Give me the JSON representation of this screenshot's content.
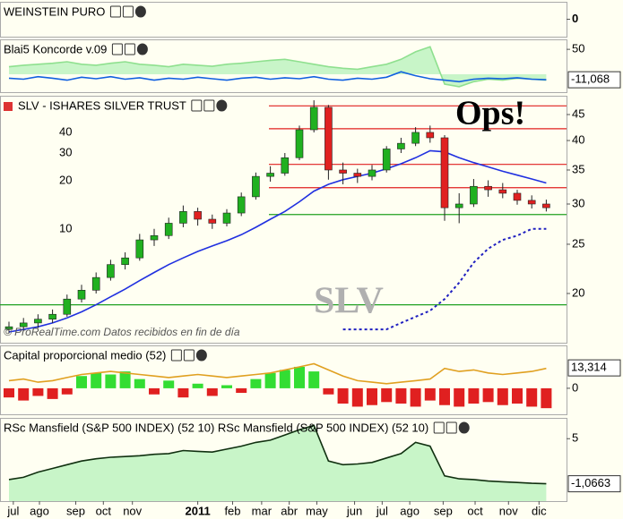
{
  "chart_data": [
    {
      "type": "line",
      "title": "WEINSTEIN PURO",
      "ylim": [
        -1,
        1
      ],
      "yticks": [
        0
      ],
      "series": []
    },
    {
      "type": "line",
      "title": "Blai5 Koncorde v.09",
      "ylim": [
        -36,
        70
      ],
      "yticks": [
        50
      ],
      "last": {
        "value": -11.068,
        "label": "-11,068"
      },
      "series": [
        {
          "color": "#8fe08f",
          "fill": "#c8f5c8",
          "values": [
            15,
            18,
            20,
            22,
            25,
            20,
            18,
            22,
            25,
            20,
            18,
            15,
            20,
            18,
            16,
            20,
            22,
            25,
            28,
            30,
            25,
            20,
            15,
            12,
            10,
            15,
            20,
            30,
            45,
            55,
            -20,
            -25,
            -15,
            -10,
            -12,
            -8,
            -10,
            -12
          ]
        },
        {
          "color": "#1060e0",
          "values": [
            -8,
            -10,
            -5,
            -8,
            -12,
            -6,
            -9,
            -5,
            -10,
            -7,
            -12,
            -8,
            -10,
            -6,
            -9,
            -12,
            -8,
            -6,
            -10,
            -7,
            -9,
            -5,
            -10,
            -12,
            -8,
            -10,
            -6,
            5,
            -3,
            -9,
            -12,
            -15,
            -10,
            -8,
            -9,
            -7,
            -10,
            -11.068
          ]
        }
      ]
    },
    {
      "type": "candlestick",
      "title": "SLV - ISHARES SILVER TRUST",
      "log_scale": true,
      "ylim": [
        16,
        49
      ],
      "yticks": [
        20,
        25,
        30,
        35,
        40,
        45
      ],
      "annotation": "Ops!",
      "watermark": "SLV",
      "source": "© ProRealTime.com Datos recibidos en fin de día",
      "inset_labels": [
        "40",
        "30",
        "20",
        "10"
      ],
      "up_color": "#20b020",
      "down_color": "#e02020",
      "open": [
        17.0,
        17.2,
        17.5,
        17.8,
        18.2,
        19.5,
        20.3,
        21.5,
        22.8,
        23.5,
        25.5,
        26.0,
        27.5,
        29.0,
        28.0,
        27.5,
        28.8,
        31.0,
        34.0,
        34.5,
        37.0,
        42.0,
        46.5,
        35.0,
        34.5,
        34.0,
        35.0,
        38.5,
        39.5,
        41.5,
        40.5,
        29.5,
        30.0,
        32.5,
        32.0,
        31.5,
        30.5,
        30.0
      ],
      "high": [
        17.6,
        17.9,
        18.2,
        18.6,
        19.9,
        20.8,
        22.0,
        23.3,
        24.1,
        26.2,
        26.8,
        28.2,
        29.8,
        29.5,
        28.6,
        29.3,
        31.6,
        34.6,
        35.6,
        37.8,
        42.8,
        48.0,
        47.0,
        36.2,
        35.2,
        35.8,
        39.0,
        40.5,
        42.5,
        42.8,
        41.0,
        31.5,
        33.6,
        33.4,
        33.0,
        32.0,
        31.2,
        30.6
      ],
      "low": [
        16.7,
        16.9,
        17.1,
        17.5,
        18.0,
        19.2,
        20.0,
        21.2,
        22.3,
        23.2,
        24.8,
        25.6,
        27.0,
        27.2,
        26.8,
        27.1,
        28.4,
        30.6,
        33.2,
        34.1,
        36.6,
        41.5,
        33.5,
        32.8,
        33.0,
        33.4,
        34.6,
        37.8,
        39.0,
        39.6,
        27.8,
        27.5,
        29.6,
        31.0,
        30.8,
        29.9,
        29.4,
        29.0
      ],
      "close": [
        17.2,
        17.5,
        17.8,
        18.2,
        19.5,
        20.3,
        21.5,
        22.8,
        23.5,
        25.5,
        26.0,
        27.5,
        29.0,
        28.0,
        27.5,
        28.8,
        31.0,
        34.0,
        34.5,
        37.0,
        42.0,
        46.5,
        35.0,
        34.5,
        34.0,
        35.0,
        38.5,
        39.5,
        41.5,
        40.5,
        29.5,
        30.0,
        32.5,
        32.0,
        31.5,
        30.5,
        30.0,
        29.5
      ],
      "series": [
        {
          "color": "#2030e0",
          "values": [
            16.8,
            17.0,
            17.2,
            17.5,
            17.9,
            18.4,
            19.0,
            19.7,
            20.4,
            21.2,
            22.0,
            22.8,
            23.5,
            24.2,
            24.8,
            25.4,
            26.1,
            27.0,
            28.0,
            29.0,
            30.3,
            31.8,
            32.8,
            33.5,
            34.0,
            34.5,
            35.2,
            36.0,
            37.0,
            38.2,
            38.0,
            37.0,
            36.2,
            35.5,
            34.8,
            34.2,
            33.6,
            33.0
          ]
        },
        {
          "color": "#2020c0",
          "dashed": true,
          "values": [
            null,
            null,
            null,
            null,
            null,
            null,
            null,
            null,
            null,
            null,
            null,
            null,
            null,
            null,
            null,
            null,
            null,
            null,
            null,
            null,
            null,
            null,
            null,
            17.0,
            17.0,
            17.0,
            17.0,
            17.5,
            18.0,
            18.5,
            19.5,
            21.0,
            23.0,
            24.5,
            25.5,
            26.0,
            26.8,
            26.8
          ]
        }
      ],
      "levels": [
        {
          "value": 46.8,
          "color": "#e02020"
        },
        {
          "value": 42.2,
          "color": "#e02020"
        },
        {
          "value": 35.9,
          "color": "#e02020"
        },
        {
          "value": 32.3,
          "color": "#e02020"
        },
        {
          "value": 28.6,
          "color": "#20a020"
        },
        {
          "value": 19.0,
          "color": "#20a020"
        }
      ]
    },
    {
      "type": "bar",
      "title": "Capital proporcional medio (52)",
      "ylim": [
        -17,
        28
      ],
      "yticks": [
        0
      ],
      "last": {
        "value": 13.314,
        "label": "13,314"
      },
      "pos_color": "#33dd33",
      "neg_color": "#e02020",
      "values": [
        -6,
        -8,
        -5,
        -7,
        -4,
        8,
        10,
        9,
        11,
        6,
        -4,
        5,
        -6,
        3,
        -5,
        2,
        -3,
        6,
        10,
        12,
        14,
        11,
        -4,
        -10,
        -12,
        -11,
        -9,
        -10,
        -12,
        -8,
        -11,
        -12,
        -10,
        -9,
        -11,
        -10,
        -12,
        -13
      ],
      "series": [
        {
          "color": "#e0a020",
          "values": [
            5,
            6,
            4,
            5,
            7,
            9,
            10,
            11,
            10,
            9,
            8,
            7,
            8,
            9,
            8,
            7,
            8,
            9,
            10,
            12,
            14,
            16,
            12,
            8,
            5,
            4,
            3,
            4,
            5,
            6,
            13,
            11,
            12,
            10,
            9,
            10,
            11,
            13
          ]
        }
      ]
    },
    {
      "type": "line",
      "title": "RSc Mansfield (S&P 500 INDEX) (52 10) RSc Mansfield (S&P 500 INDEX) (52 10)",
      "ylim": [
        -3.4,
        7.8
      ],
      "yticks": [
        5
      ],
      "last": {
        "value": -1.0663,
        "label": "-1,0663"
      },
      "series": [
        {
          "color": "#103010",
          "fill": "#c8f5c8",
          "values": [
            -0.5,
            -0.2,
            0.5,
            1.0,
            1.5,
            2.0,
            2.3,
            2.5,
            2.6,
            2.7,
            2.9,
            3.0,
            3.4,
            3.3,
            3.2,
            3.6,
            4.0,
            4.5,
            4.8,
            5.5,
            6.2,
            6.8,
            2.0,
            1.5,
            1.6,
            1.8,
            2.4,
            3.0,
            4.5,
            4.0,
            0.0,
            -0.4,
            -0.5,
            -0.7,
            -0.8,
            -0.9,
            -1.0,
            -1.0663
          ]
        }
      ],
      "xticks": [
        {
          "value": 0.3,
          "label": "jul"
        },
        {
          "value": 2.1,
          "label": "ago"
        },
        {
          "value": 4.6,
          "label": "sep"
        },
        {
          "value": 6.5,
          "label": "oct"
        },
        {
          "value": 8.5,
          "label": "nov"
        },
        {
          "value": 13,
          "label": "2011"
        },
        {
          "value": 15.4,
          "label": "feb"
        },
        {
          "value": 17.4,
          "label": "mar"
        },
        {
          "value": 19.3,
          "label": "abr"
        },
        {
          "value": 21.2,
          "label": "may"
        },
        {
          "value": 23.8,
          "label": "jun"
        },
        {
          "value": 25.7,
          "label": "jul"
        },
        {
          "value": 27.6,
          "label": "ago"
        },
        {
          "value": 29.9,
          "label": "sep"
        },
        {
          "value": 32.1,
          "label": "oct"
        },
        {
          "value": 34.4,
          "label": "nov"
        },
        {
          "value": 36.5,
          "label": "dic"
        }
      ]
    }
  ]
}
